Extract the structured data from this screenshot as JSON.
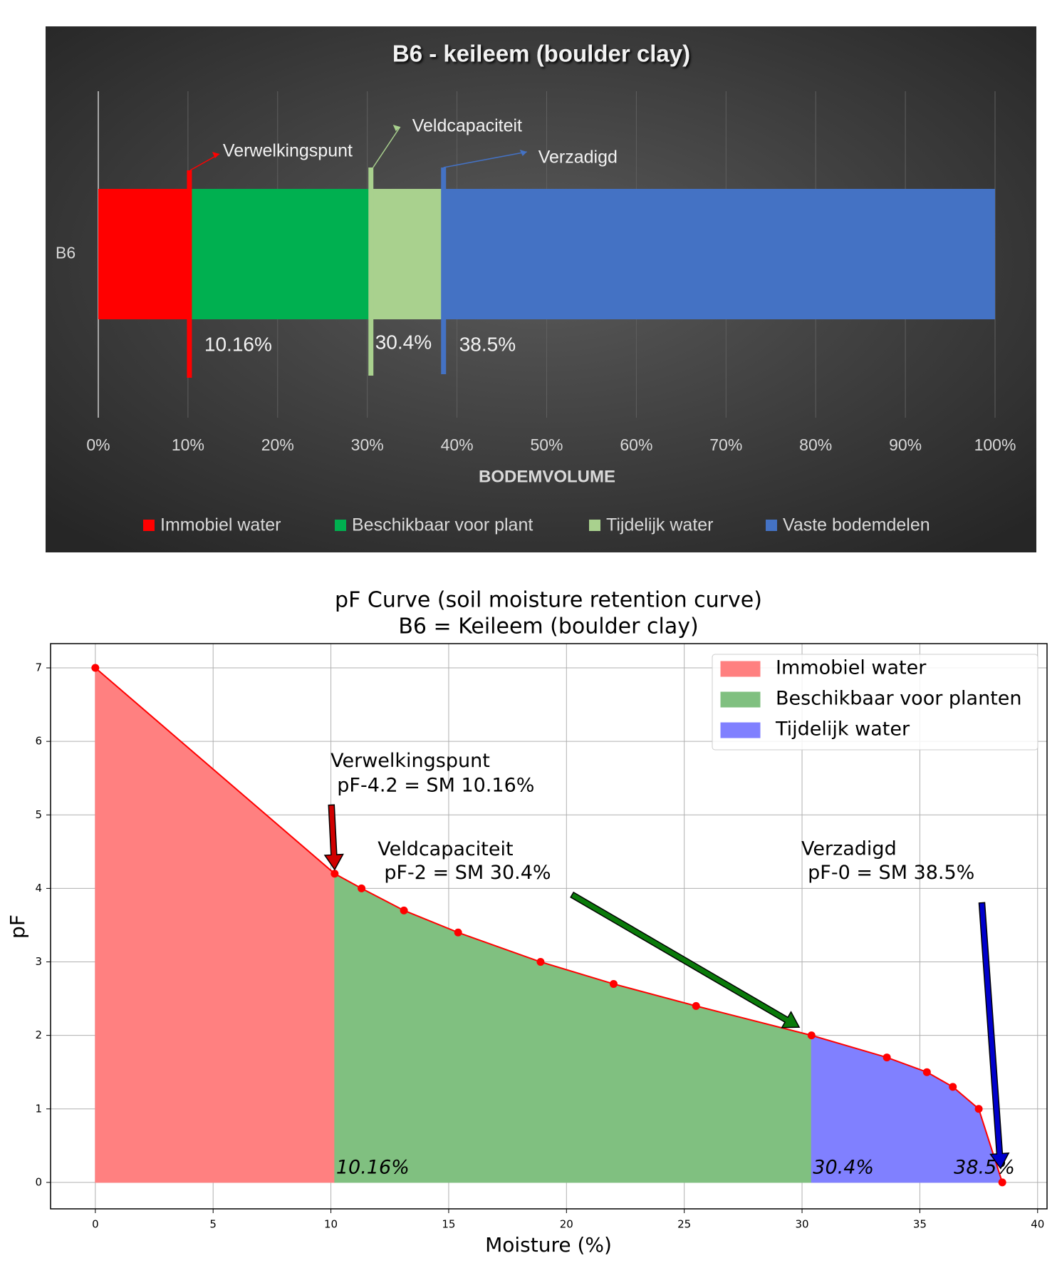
{
  "chart_data": [
    {
      "type": "bar",
      "orientation": "horizontal",
      "stacked": true,
      "title": "B6 - keileem (boulder clay)",
      "categories": [
        "B6"
      ],
      "series": [
        {
          "name": "Immobiel water",
          "color": "#ff0000",
          "values": [
            10.16
          ]
        },
        {
          "name": "Beschikbaar voor plant",
          "color": "#00b050",
          "values": [
            20.24
          ]
        },
        {
          "name": "Tijdelijk water",
          "color": "#a9d18e",
          "values": [
            8.1
          ]
        },
        {
          "name": "Vaste bodemdelen",
          "color": "#4472c4",
          "values": [
            61.5
          ]
        }
      ],
      "xlabel": "BODEMVOLUME",
      "xlim": [
        0,
        100
      ],
      "xticks": [
        {
          "value": 0,
          "label": "0%"
        },
        {
          "value": 10,
          "label": "10%"
        },
        {
          "value": 20,
          "label": "20%"
        },
        {
          "value": 30,
          "label": "30%"
        },
        {
          "value": 40,
          "label": "40%"
        },
        {
          "value": 50,
          "label": "50%"
        },
        {
          "value": 60,
          "label": "60%"
        },
        {
          "value": 70,
          "label": "70%"
        },
        {
          "value": 80,
          "label": "80%"
        },
        {
          "value": 90,
          "label": "90%"
        },
        {
          "value": 100,
          "label": "100%"
        }
      ],
      "grid": true,
      "legend": "bottom",
      "annotations": [
        {
          "text": "Verwelkingspunt",
          "value": 10.16,
          "label": "10.16%",
          "color": "#ff0000"
        },
        {
          "text": "Veldcapaciteit",
          "value": 30.4,
          "label": "30.4%",
          "color": "#a9d18e"
        },
        {
          "text": "Verzadigd",
          "value": 38.5,
          "label": "38.5%",
          "color": "#4472c4"
        }
      ]
    },
    {
      "type": "line",
      "title": "pF Curve (soil moisture retention curve)",
      "subtitle": "B6 = Keileem (boulder clay)",
      "xlabel": "Moisture (%)",
      "ylabel": "pF",
      "x": [
        0,
        10.16,
        11.3,
        13.1,
        15.4,
        18.9,
        22,
        25.5,
        30.4,
        33.6,
        35.3,
        36.4,
        37.5,
        38.5
      ],
      "series": [
        {
          "color": "#ff0000",
          "values": [
            7,
            4.2,
            4,
            3.7,
            3.4,
            3,
            2.7,
            2.4,
            2,
            1.7,
            1.5,
            1.3,
            1,
            0
          ]
        }
      ],
      "areas": [
        {
          "name": "Immobiel water",
          "color": "#ff8080",
          "from": 0,
          "to": 10.16
        },
        {
          "name": "Beschikbaar voor planten",
          "color": "#80c080",
          "from": 10.16,
          "to": 30.4
        },
        {
          "name": "Tijdelijk water",
          "color": "#8080ff",
          "from": 30.4,
          "to": 38.5
        }
      ],
      "boundary_labels": [
        {
          "value": 10.16,
          "label": "10.16%"
        },
        {
          "value": 30.4,
          "label": "30.4%"
        },
        {
          "value": 38.5,
          "label": "38.5%"
        }
      ],
      "annotations": [
        {
          "lines": [
            "Verwelkingspunt",
            "pF-4.2 = SM 10.16%"
          ],
          "x": 10.16,
          "y": 4.2,
          "color": "#d00000"
        },
        {
          "lines": [
            "Veldcapaciteit",
            "pF-2 = SM 30.4%"
          ],
          "x": 30.4,
          "y": 2,
          "color": "#0a7a0a"
        },
        {
          "lines": [
            "Verzadigd",
            "pF-0 = SM 38.5%"
          ],
          "x": 38.5,
          "y": 0,
          "color": "#0000cc"
        }
      ],
      "xlim": [
        -1.9,
        40.4
      ],
      "ylim": [
        -0.36,
        7.33
      ],
      "xticks": [
        0,
        5,
        10,
        15,
        20,
        25,
        30,
        35,
        40
      ],
      "yticks": [
        0,
        1,
        2,
        3,
        4,
        5,
        6,
        7
      ],
      "grid": true,
      "legend": "upper right"
    }
  ]
}
